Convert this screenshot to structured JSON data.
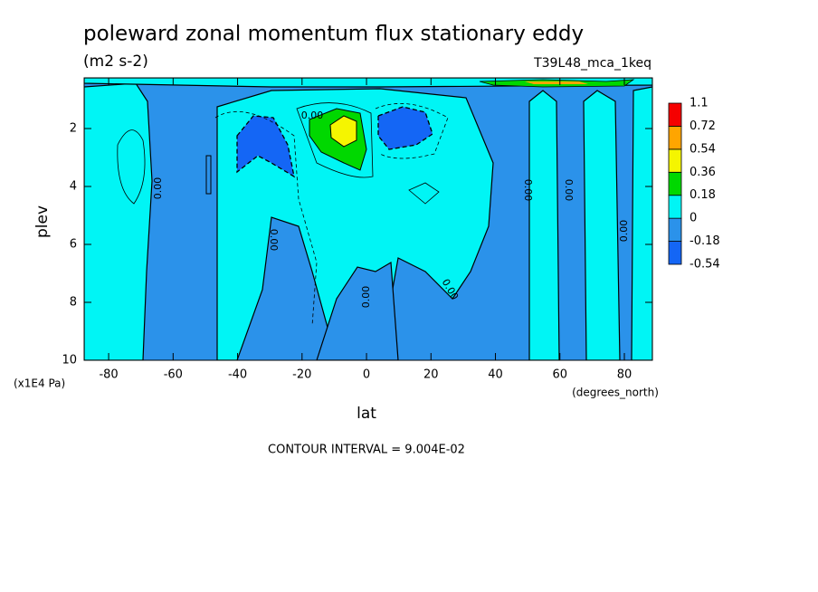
{
  "chart_data": {
    "type": "contour",
    "title": "poleward zonal momentum flux stationary eddy",
    "subtitle": "(m2 s-2)",
    "dataset": "T39L48_mca_1keq",
    "x_label": "lat",
    "x_units": "(degrees_north)",
    "y_label": "plev",
    "y_units": "(x1E4 Pa)",
    "footer": "CONTOUR INTERVAL = 9.004E-02",
    "xlim": [
      -87.6,
      88.7
    ],
    "xticks": [
      -80,
      -60,
      -40,
      -20,
      0,
      20,
      40,
      60,
      80
    ],
    "ylim": [
      10,
      0.25
    ],
    "yticks": [
      2,
      4,
      6,
      8,
      10
    ],
    "levels": [
      -0.54,
      -0.18,
      0,
      0.18,
      0.36,
      0.54,
      0.72,
      1.1
    ],
    "colors": [
      "#1466f5",
      "#2b92ea",
      "#00f5f5",
      "#00d800",
      "#f5f500",
      "#ffa500",
      "#f50000"
    ],
    "contour_labels": [
      {
        "value": 0,
        "label": "0.00"
      },
      {
        "value": 0,
        "label": "0.00"
      },
      {
        "value": 0,
        "label": "0.00"
      },
      {
        "value": 0,
        "label": "0.00"
      },
      {
        "value": 0,
        "label": "0.00"
      },
      {
        "value": 0,
        "label": "0.00"
      },
      {
        "value": 0,
        "label": "0.00"
      },
      {
        "value": 0,
        "label": "0.00"
      }
    ]
  }
}
